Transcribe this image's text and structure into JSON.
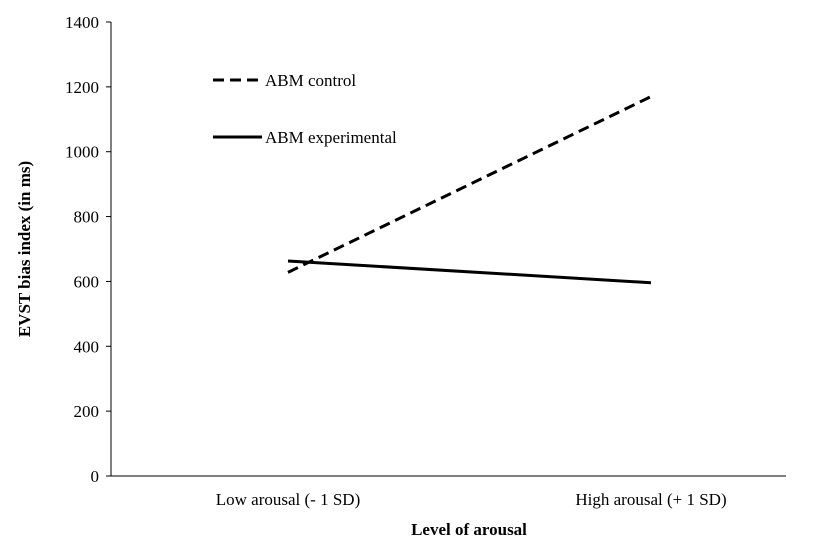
{
  "chart_data": {
    "type": "line",
    "categories": [
      "Low arousal (- 1 SD)",
      "High arousal (+ 1 SD)"
    ],
    "series": [
      {
        "name": "ABM control",
        "values": [
          628,
          1170
        ],
        "color": "#000000",
        "dash": "dashed"
      },
      {
        "name": "ABM experimental",
        "values": [
          663,
          596
        ],
        "color": "#000000",
        "dash": "solid"
      }
    ],
    "xlabel": "Level of arousal",
    "ylabel": "EVST bias index (in ms)",
    "ylim": [
      0,
      1400
    ],
    "yticks": [
      0,
      200,
      400,
      600,
      800,
      1000,
      1200,
      1400
    ],
    "grid": false,
    "legend_position": "top-left"
  }
}
